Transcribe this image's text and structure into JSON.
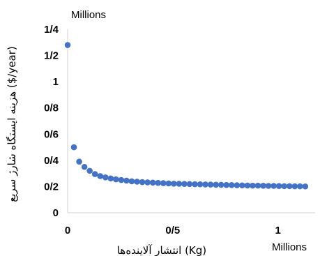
{
  "chart_data": {
    "type": "scatter",
    "title": "",
    "xlabel": "انتشار آلاینده‌ها (Kg)",
    "ylabel": "هزینه ایستگاه شارژ سریع ($/year)",
    "x_scale_label": "Millions",
    "y_scale_label": "Millions",
    "xlim": [
      0,
      1.2
    ],
    "ylim": [
      0,
      1.4
    ],
    "x_ticks": [
      {
        "value": 0,
        "label": "0"
      },
      {
        "value": 0.5,
        "label": "0/5"
      },
      {
        "value": 1,
        "label": "1"
      }
    ],
    "y_ticks": [
      {
        "value": 0,
        "label": "0"
      },
      {
        "value": 0.2,
        "label": "0/2"
      },
      {
        "value": 0.4,
        "label": "0/4"
      },
      {
        "value": 0.6,
        "label": "0/6"
      },
      {
        "value": 0.8,
        "label": "0/8"
      },
      {
        "value": 1.0,
        "label": "1"
      },
      {
        "value": 1.2,
        "label": "1/2"
      },
      {
        "value": 1.4,
        "label": "1/4"
      }
    ],
    "grid": false,
    "marker_color": "#4472c4",
    "series": [
      {
        "x": [
          0,
          0.03,
          0.055,
          0.08,
          0.105,
          0.13,
          0.155,
          0.18,
          0.205,
          0.23,
          0.255,
          0.28,
          0.305,
          0.33,
          0.355,
          0.38,
          0.405,
          0.43,
          0.455,
          0.48,
          0.505,
          0.53,
          0.555,
          0.58,
          0.605,
          0.63,
          0.655,
          0.68,
          0.705,
          0.73,
          0.755,
          0.78,
          0.805,
          0.83,
          0.855,
          0.88,
          0.905,
          0.93,
          0.955,
          0.98,
          1.005,
          1.03,
          1.055,
          1.08,
          1.105,
          1.13
        ],
        "y": [
          1.28,
          0.5,
          0.39,
          0.35,
          0.32,
          0.295,
          0.28,
          0.27,
          0.262,
          0.255,
          0.25,
          0.245,
          0.24,
          0.237,
          0.234,
          0.232,
          0.23,
          0.228,
          0.226,
          0.224,
          0.222,
          0.221,
          0.22,
          0.219,
          0.218,
          0.217,
          0.216,
          0.215,
          0.214,
          0.213,
          0.212,
          0.211,
          0.21,
          0.209,
          0.208,
          0.207,
          0.207,
          0.206,
          0.205,
          0.205,
          0.204,
          0.203,
          0.203,
          0.202,
          0.202,
          0.201
        ]
      }
    ]
  }
}
